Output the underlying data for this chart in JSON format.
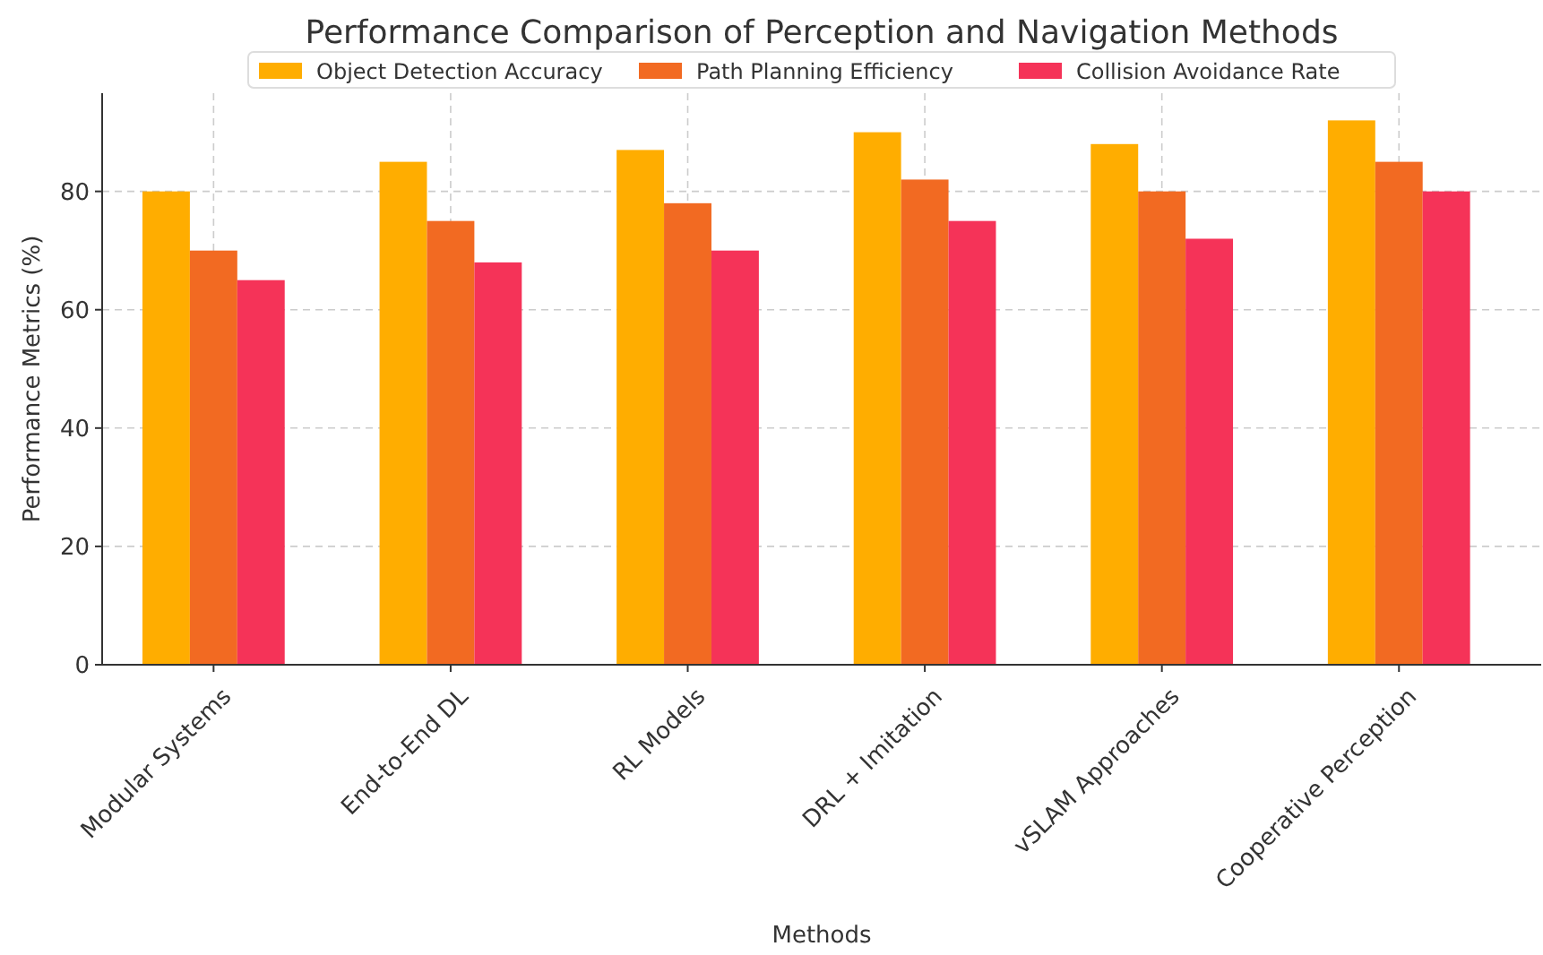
{
  "chart_data": {
    "type": "bar",
    "title": "Performance Comparison of Perception and Navigation Methods",
    "xlabel": "Methods",
    "ylabel": "Performance Metrics (%)",
    "categories": [
      "Modular Systems",
      "End-to-End DL",
      "RL Models",
      "DRL + Imitation",
      "vSLAM Approaches",
      "Cooperative Perception"
    ],
    "series": [
      {
        "name": "Object Detection Accuracy",
        "color": "#ffad00",
        "values": [
          80,
          85,
          87,
          90,
          88,
          92
        ]
      },
      {
        "name": "Path Planning Efficiency",
        "color": "#f26a22",
        "values": [
          70,
          75,
          78,
          82,
          80,
          85
        ]
      },
      {
        "name": "Collision Avoidance Rate",
        "color": "#f53358",
        "values": [
          65,
          68,
          70,
          75,
          72,
          80
        ]
      }
    ],
    "ylim": [
      0,
      96.6
    ],
    "yticks": [
      0,
      20,
      40,
      60,
      80
    ],
    "grid": true,
    "legend": "top"
  }
}
